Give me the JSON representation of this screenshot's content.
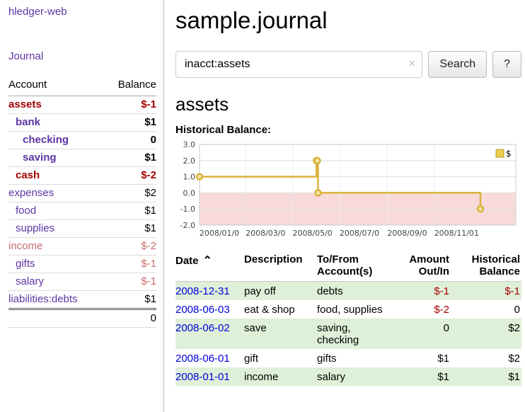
{
  "sidebar": {
    "app_title": "hledger-web",
    "journal_label": "Journal",
    "accounts": {
      "header_account": "Account",
      "header_balance": "Balance",
      "rows": [
        {
          "name": "assets",
          "indent": 0,
          "balance": "$-1",
          "bold": true,
          "name_color": "negative",
          "balance_color": "negative"
        },
        {
          "name": "bank",
          "indent": 1,
          "balance": "$1",
          "bold": true
        },
        {
          "name": "checking",
          "indent": 2,
          "balance": "0",
          "bold": true
        },
        {
          "name": "saving",
          "indent": 2,
          "balance": "$1",
          "bold": true
        },
        {
          "name": "cash",
          "indent": 1,
          "balance": "$-2",
          "bold": true,
          "name_color": "negative",
          "balance_color": "negative"
        },
        {
          "name": "expenses",
          "indent": 0,
          "balance": "$2"
        },
        {
          "name": "food",
          "indent": 1,
          "balance": "$1"
        },
        {
          "name": "supplies",
          "indent": 1,
          "balance": "$1"
        },
        {
          "name": "income",
          "indent": 0,
          "balance": "$-2",
          "name_color": "pale",
          "balance_color": "pale"
        },
        {
          "name": "gifts",
          "indent": 1,
          "balance": "$-1",
          "balance_color": "pale"
        },
        {
          "name": "salary",
          "indent": 1,
          "balance": "$-1",
          "balance_color": "pale"
        },
        {
          "name": "liabilities:debts",
          "indent": 0,
          "balance": "$1"
        }
      ],
      "total": "0"
    }
  },
  "main": {
    "title": "sample.journal",
    "search": {
      "value": "inacct:assets",
      "clear_icon": "×",
      "button_label": "Search",
      "help_label": "?"
    },
    "account_heading": "assets",
    "register": {
      "sort_icon": "⌃",
      "columns": [
        "Date",
        "Description",
        "To/From Account(s)",
        "Amount Out/In",
        "Historical Balance"
      ],
      "rows": [
        {
          "date": "2008-12-31",
          "description": "pay off",
          "accounts": "debts",
          "amount": "$-1",
          "amount_neg": true,
          "balance": "$-1",
          "balance_neg": true
        },
        {
          "date": "2008-06-03",
          "description": "eat & shop",
          "accounts": "food, supplies",
          "amount": "$-2",
          "amount_neg": true,
          "balance": "0",
          "balance_neg": false
        },
        {
          "date": "2008-06-02",
          "description": "save",
          "accounts": "saving, checking",
          "amount": "0",
          "amount_neg": false,
          "balance": "$2",
          "balance_neg": false
        },
        {
          "date": "2008-06-01",
          "description": "gift",
          "accounts": "gifts",
          "amount": "$1",
          "amount_neg": false,
          "balance": "$2",
          "balance_neg": false
        },
        {
          "date": "2008-01-01",
          "description": "income",
          "accounts": "salary",
          "amount": "$1",
          "amount_neg": false,
          "balance": "$1",
          "balance_neg": false
        }
      ]
    }
  },
  "chart_data": {
    "type": "line",
    "step": true,
    "title": "Historical Balance:",
    "series_name": "$",
    "x": [
      "2008-01-01",
      "2008-06-01",
      "2008-06-02",
      "2008-06-03",
      "2008-12-31"
    ],
    "y": [
      1,
      2,
      2,
      0,
      -1
    ],
    "ylim": [
      -2,
      3
    ],
    "yticks": [
      "3.0",
      "2.0",
      "1.0",
      "0.0",
      "-1.0",
      "-2.0"
    ],
    "xticks": [
      {
        "label": "2008/01/0",
        "date": "2008-01-01"
      },
      {
        "label": "2008/03/0",
        "date": "2008-03-01"
      },
      {
        "label": "2008/05/0",
        "date": "2008-05-01"
      },
      {
        "label": "2008/07/0",
        "date": "2008-07-01"
      },
      {
        "label": "2008/09/0",
        "date": "2008-09-01"
      },
      {
        "label": "2008/11/01",
        "date": "2008-11-01"
      }
    ],
    "xlim": [
      "2008-01-01",
      "2009-02-15"
    ],
    "legend_position": "top-right",
    "grid": true,
    "colors": {
      "line": "#d9b23a",
      "marker_fill": "#f5e5a8",
      "negative_region": "#f9dada",
      "grid": "#dddddd",
      "border": "#cccccc",
      "legend_fill": "#eccf4e",
      "legend_stroke": "#b89b2b"
    }
  }
}
